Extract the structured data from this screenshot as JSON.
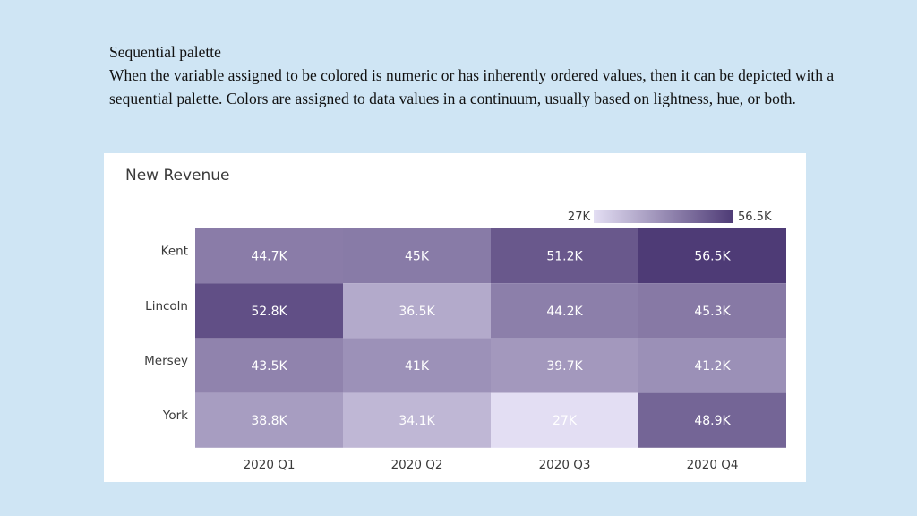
{
  "slide": {
    "heading": "Sequential palette",
    "paragraph": "When the variable assigned to be colored is numeric or has inherently ordered values, then it can be depicted with a sequential palette. Colors are assigned to data values in a continuum, usually based on lightness, hue, or both."
  },
  "colors": {
    "background": "#cfe5f4",
    "low": "#e3def3",
    "high": "#4e3b76"
  },
  "chart_data": {
    "type": "heatmap",
    "title": "New Revenue",
    "rows": [
      "Kent",
      "Lincoln",
      "Mersey",
      "York"
    ],
    "columns": [
      "2020 Q1",
      "2020 Q2",
      "2020 Q3",
      "2020 Q4"
    ],
    "values": [
      [
        44.7,
        45,
        51.2,
        56.5
      ],
      [
        52.8,
        36.5,
        44.2,
        45.3
      ],
      [
        43.5,
        41,
        39.7,
        41.2
      ],
      [
        38.8,
        34.1,
        27,
        48.9
      ]
    ],
    "labels": [
      [
        "44.7K",
        "45K",
        "51.2K",
        "56.5K"
      ],
      [
        "52.8K",
        "36.5K",
        "44.2K",
        "45.3K"
      ],
      [
        "43.5K",
        "41K",
        "39.7K",
        "41.2K"
      ],
      [
        "38.8K",
        "34.1K",
        "27K",
        "48.9K"
      ]
    ],
    "legend": {
      "min": 27,
      "max": 56.5,
      "min_label": "27K",
      "max_label": "56.5K"
    }
  }
}
